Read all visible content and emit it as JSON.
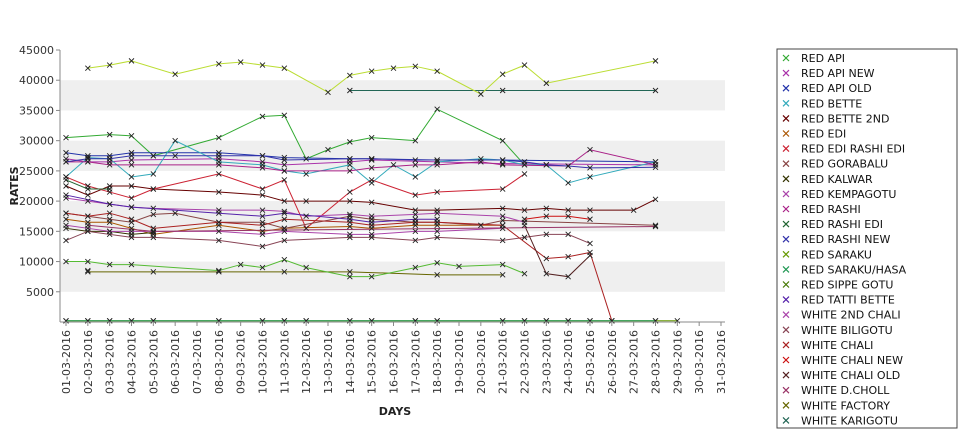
{
  "chart_data": {
    "type": "line",
    "xlabel": "DAYS",
    "ylabel": "RATES",
    "ylim": [
      0,
      45000
    ],
    "y_ticks": [
      5000,
      10000,
      15000,
      20000,
      25000,
      30000,
      35000,
      40000,
      45000
    ],
    "grid": "alternating horizontal bands",
    "legend_position": "right",
    "categories": [
      "01-03-2016",
      "02-03-2016",
      "03-03-2016",
      "04-03-2016",
      "05-03-2016",
      "06-03-2016",
      "07-03-2016",
      "08-03-2016",
      "09-03-2016",
      "10-03-2016",
      "11-03-2016",
      "12-03-2016",
      "13-03-2016",
      "14-03-2016",
      "15-03-2016",
      "16-03-2016",
      "17-03-2016",
      "18-03-2016",
      "19-03-2016",
      "20-03-2016",
      "21-03-2016",
      "22-03-2016",
      "23-03-2016",
      "24-03-2016",
      "25-03-2016",
      "26-03-2016",
      "27-03-2016",
      "28-03-2016",
      "29-03-2016",
      "30-03-2016",
      "31-03-2016"
    ],
    "series": [
      {
        "name": "RED API",
        "color": "#33aa33",
        "values": [
          30500,
          null,
          31000,
          30800,
          27500,
          null,
          null,
          30500,
          null,
          34000,
          34200,
          27000,
          28500,
          29800,
          30500,
          null,
          30000,
          35200,
          null,
          null,
          30000,
          26000,
          null,
          null,
          null,
          null,
          null,
          null,
          null,
          null,
          null
        ]
      },
      {
        "name": "RED API NEW",
        "color": "#aa33aa",
        "values": [
          27000,
          26500,
          26500,
          26800,
          null,
          null,
          null,
          27000,
          null,
          26500,
          26000,
          null,
          null,
          26500,
          26800,
          null,
          null,
          26500,
          null,
          null,
          26200,
          null,
          null,
          null,
          null,
          null,
          null,
          26000,
          null,
          null,
          null
        ]
      },
      {
        "name": "RED API OLD",
        "color": "#2233aa",
        "values": [
          28000,
          27500,
          27500,
          28000,
          null,
          null,
          null,
          28000,
          null,
          27500,
          27200,
          null,
          null,
          27000,
          27000,
          null,
          null,
          26800,
          null,
          null,
          26800,
          null,
          null,
          null,
          null,
          null,
          null,
          26500,
          null,
          null,
          null
        ]
      },
      {
        "name": "RED BETTE",
        "color": "#33aabb",
        "values": [
          24000,
          27200,
          27000,
          24000,
          24500,
          30000,
          null,
          26500,
          null,
          26000,
          25000,
          24500,
          null,
          26000,
          23000,
          26000,
          24000,
          26500,
          null,
          27000,
          26800,
          26000,
          26000,
          23000,
          24000,
          null,
          null,
          26500,
          null,
          null,
          null
        ]
      },
      {
        "name": "RED BETTE 2ND",
        "color": "#660000",
        "values": [
          22500,
          21000,
          22500,
          22500,
          22000,
          null,
          null,
          21500,
          null,
          21000,
          20000,
          20000,
          null,
          20000,
          19800,
          null,
          18500,
          18500,
          null,
          null,
          18800,
          18500,
          18800,
          18500,
          18500,
          null,
          18500,
          20300,
          null,
          null,
          null
        ]
      },
      {
        "name": "RED EDI",
        "color": "#aa5500",
        "values": [
          17000,
          16500,
          16500,
          15500,
          14500,
          null,
          null,
          16000,
          null,
          15000,
          15500,
          null,
          null,
          15800,
          15500,
          null,
          16000,
          16000,
          null,
          null,
          16000,
          null,
          null,
          null,
          null,
          null,
          null,
          null,
          null,
          null,
          null
        ]
      },
      {
        "name": "RED EDI RASHI EDI",
        "color": "#cc2233",
        "values": [
          24000,
          22500,
          21500,
          20500,
          22000,
          null,
          null,
          24500,
          null,
          22000,
          23500,
          15500,
          null,
          21500,
          23500,
          null,
          21000,
          21500,
          null,
          null,
          22000,
          24500,
          null,
          null,
          null,
          null,
          null,
          null,
          null,
          null,
          null
        ]
      },
      {
        "name": "RED GORABALU",
        "color": "#884444",
        "values": [
          18000,
          17500,
          17000,
          16500,
          17800,
          18000,
          null,
          16500,
          null,
          16500,
          15500,
          null,
          null,
          17500,
          17000,
          null,
          16500,
          16500,
          null,
          16000,
          16800,
          null,
          null,
          null,
          null,
          null,
          null,
          16000,
          null,
          null,
          null
        ]
      },
      {
        "name": "RED KALWAR",
        "color": "#333300",
        "values": [
          15500,
          15000,
          15000,
          14500,
          14800,
          null,
          null,
          null,
          null,
          null,
          null,
          null,
          null,
          null,
          null,
          null,
          null,
          null,
          null,
          null,
          null,
          null,
          null,
          null,
          null,
          null,
          null,
          null,
          null,
          null,
          null
        ]
      },
      {
        "name": "RED KEMPAGOTU",
        "color": "#aa44aa",
        "values": [
          20500,
          20000,
          19500,
          19000,
          18800,
          null,
          null,
          18500,
          null,
          18500,
          18300,
          17500,
          null,
          17800,
          17500,
          null,
          17800,
          18000,
          null,
          null,
          17500,
          16500,
          null,
          null,
          null,
          null,
          null,
          null,
          null,
          null,
          null
        ]
      },
      {
        "name": "RED RASHI",
        "color": "#aa2288",
        "values": [
          26500,
          26500,
          26000,
          26000,
          null,
          null,
          null,
          26000,
          null,
          25500,
          25000,
          null,
          null,
          25000,
          25500,
          null,
          26000,
          26000,
          null,
          26500,
          26000,
          null,
          null,
          25800,
          28500,
          null,
          null,
          26000,
          null,
          null,
          null
        ]
      },
      {
        "name": "RED RASHI EDI",
        "color": "#226633",
        "values": [
          23500,
          22000,
          22000,
          null,
          null,
          null,
          null,
          null,
          null,
          null,
          null,
          null,
          null,
          null,
          null,
          null,
          null,
          null,
          null,
          null,
          null,
          null,
          null,
          null,
          null,
          null,
          null,
          null,
          null,
          null,
          null
        ]
      },
      {
        "name": "RED RASHI NEW",
        "color": "#3333aa",
        "values": [
          26500,
          27000,
          27000,
          27500,
          27500,
          27500,
          null,
          27500,
          null,
          27500,
          26800,
          null,
          null,
          27000,
          27000,
          null,
          26800,
          26800,
          null,
          null,
          26800,
          26500,
          26000,
          25800,
          25500,
          null,
          null,
          25600,
          null,
          null,
          null
        ]
      },
      {
        "name": "RED SARAKU",
        "color": "#669900",
        "values": [
          200,
          200,
          200,
          200,
          200,
          null,
          null,
          200,
          null,
          200,
          200,
          200,
          null,
          200,
          200,
          null,
          200,
          200,
          null,
          null,
          200,
          200,
          200,
          200,
          200,
          200,
          null,
          200,
          200,
          null,
          null
        ]
      },
      {
        "name": "RED SARAKU/HASA",
        "color": "#229955",
        "values": [
          200,
          200,
          200,
          200,
          200,
          null,
          null,
          200,
          null,
          200,
          200,
          200,
          null,
          200,
          200,
          null,
          200,
          200,
          null,
          null,
          200,
          200,
          200,
          200,
          200,
          200,
          null,
          200,
          null,
          null,
          null
        ]
      },
      {
        "name": "RED SIPPE GOTU",
        "color": "#447700",
        "values": [
          null,
          8500,
          null,
          null,
          null,
          null,
          null,
          null,
          null,
          null,
          null,
          null,
          null,
          null,
          null,
          null,
          null,
          null,
          null,
          null,
          null,
          null,
          null,
          null,
          null,
          null,
          null,
          null,
          null,
          null,
          null
        ]
      },
      {
        "name": "RED TATTI BETTE",
        "color": "#5522aa",
        "values": [
          21000,
          null,
          19500,
          19000,
          null,
          null,
          null,
          18000,
          null,
          17500,
          18000,
          null,
          null,
          17000,
          16500,
          null,
          17000,
          17000,
          null,
          null,
          null,
          null,
          null,
          null,
          null,
          null,
          null,
          null,
          null,
          null,
          null
        ]
      },
      {
        "name": "WHITE 2ND CHALI",
        "color": "#aa44aa",
        "values": [
          16000,
          15500,
          15000,
          15000,
          15000,
          null,
          null,
          15000,
          null,
          14500,
          15000,
          null,
          null,
          14500,
          14500,
          null,
          15000,
          15000,
          null,
          null,
          15500,
          null,
          null,
          null,
          null,
          null,
          null,
          null,
          null,
          null,
          null
        ]
      },
      {
        "name": "WHITE BILIGOTU",
        "color": "#884455",
        "values": [
          13500,
          15000,
          14500,
          14000,
          14000,
          null,
          null,
          13500,
          null,
          12500,
          13500,
          null,
          null,
          14000,
          14000,
          null,
          13500,
          14000,
          null,
          null,
          13500,
          14000,
          14500,
          14500,
          13000,
          null,
          null,
          null,
          null,
          null,
          null
        ]
      },
      {
        "name": "WHITE CHALI",
        "color": "#aa2222",
        "values": [
          18000,
          17500,
          18000,
          17000,
          15500,
          null,
          null,
          16500,
          null,
          16000,
          17000,
          null,
          null,
          16500,
          16000,
          null,
          16500,
          16500,
          null,
          null,
          16000,
          null,
          10500,
          10800,
          11500,
          200,
          null,
          null,
          null,
          null,
          null
        ]
      },
      {
        "name": "WHITE CHALI NEW",
        "color": "#cc1111",
        "values": [
          null,
          null,
          null,
          null,
          null,
          null,
          null,
          null,
          null,
          null,
          null,
          null,
          null,
          null,
          null,
          null,
          null,
          null,
          null,
          null,
          null,
          17000,
          17500,
          17500,
          17000,
          null,
          null,
          null,
          null,
          null,
          null
        ]
      },
      {
        "name": "WHITE CHALI OLD",
        "color": "#552222",
        "values": [
          null,
          null,
          null,
          null,
          null,
          null,
          null,
          null,
          null,
          null,
          null,
          null,
          null,
          null,
          null,
          null,
          null,
          null,
          null,
          null,
          null,
          16000,
          8000,
          7500,
          11000,
          null,
          null,
          null,
          null,
          null,
          null
        ]
      },
      {
        "name": "WHITE D.CHOLL",
        "color": "#993366",
        "values": [
          null,
          16000,
          null,
          null,
          15000,
          null,
          null,
          null,
          null,
          null,
          null,
          null,
          null,
          null,
          null,
          null,
          null,
          null,
          null,
          null,
          null,
          null,
          null,
          null,
          null,
          null,
          null,
          15800,
          null,
          null,
          null
        ]
      },
      {
        "name": "WHITE FACTORY",
        "color": "#666600",
        "values": [
          null,
          8300,
          null,
          null,
          8300,
          null,
          null,
          8300,
          null,
          null,
          8300,
          null,
          null,
          8300,
          null,
          null,
          null,
          7800,
          null,
          null,
          7800,
          null,
          null,
          null,
          null,
          null,
          null,
          null,
          null,
          null,
          null
        ]
      },
      {
        "name": "WHITE KARIGOTU",
        "color": "#226655",
        "values": [
          null,
          null,
          null,
          null,
          null,
          null,
          null,
          null,
          null,
          null,
          null,
          null,
          null,
          38300,
          null,
          null,
          null,
          null,
          null,
          null,
          38300,
          null,
          null,
          null,
          null,
          null,
          null,
          38300,
          null,
          null,
          null
        ]
      },
      {
        "name": "",
        "color": "#bbdd33",
        "values": [
          null,
          42000,
          42500,
          43200,
          null,
          41000,
          null,
          42700,
          43000,
          42500,
          42000,
          null,
          38000,
          40800,
          41500,
          42000,
          42300,
          41500,
          null,
          37700,
          41000,
          42500,
          39500,
          null,
          null,
          null,
          null,
          43200,
          null,
          null,
          null
        ]
      },
      {
        "name": "",
        "color": "#55bb33",
        "values": [
          10000,
          10000,
          9500,
          9500,
          null,
          null,
          null,
          8500,
          9500,
          9000,
          10300,
          9000,
          null,
          7500,
          7500,
          null,
          9000,
          9800,
          9200,
          null,
          9500,
          8000,
          null,
          null,
          null,
          null,
          null,
          null,
          null,
          null,
          null
        ]
      }
    ]
  }
}
